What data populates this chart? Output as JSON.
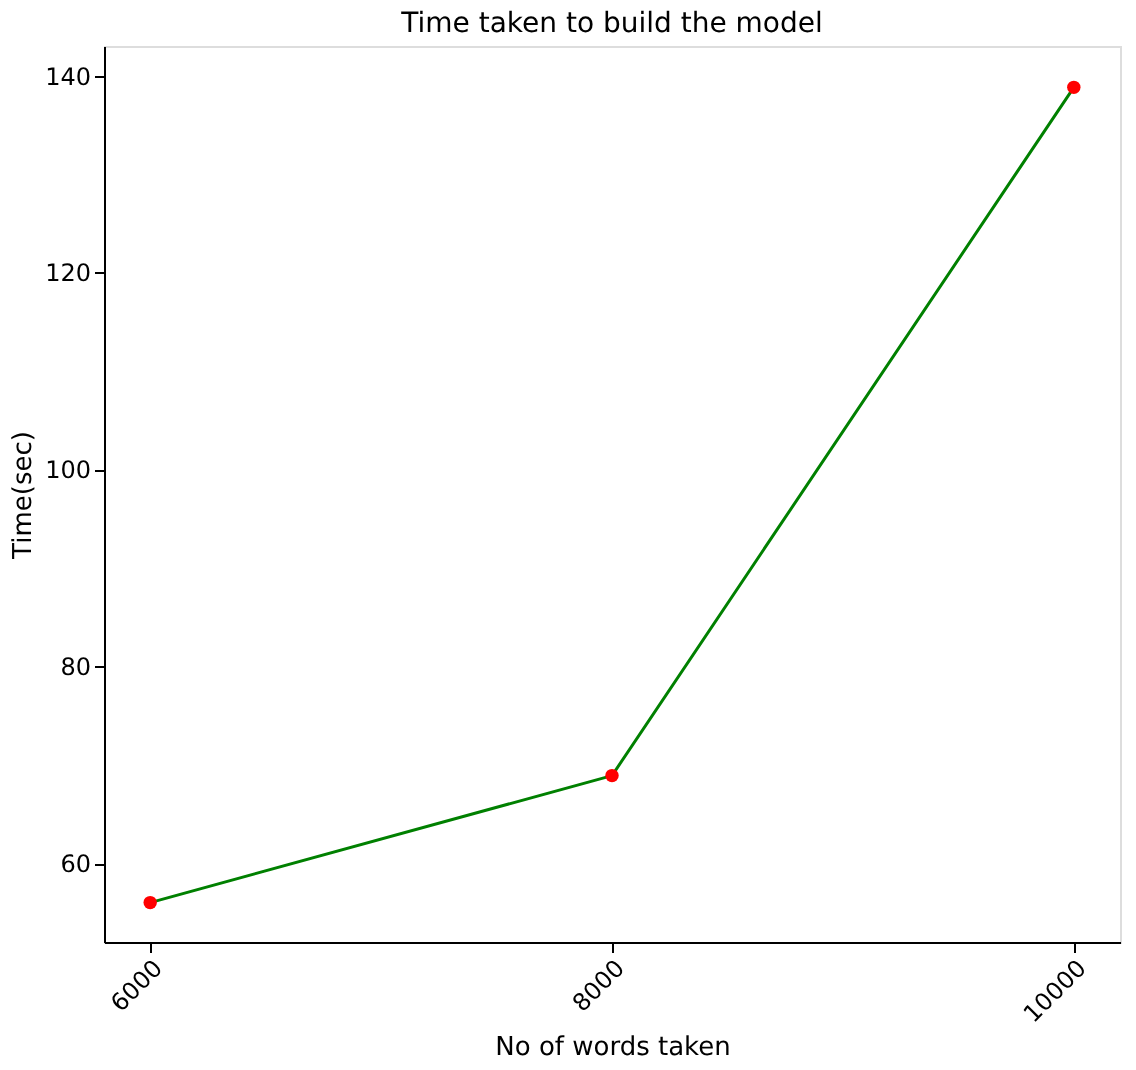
{
  "chart_data": {
    "type": "line",
    "title": "Time taken to build the model",
    "xlabel": "No of words taken",
    "ylabel": "Time(sec)",
    "x": [
      6000,
      8000,
      10000
    ],
    "series": [
      {
        "color": "#008000",
        "values": [
          56.0,
          68.9,
          138.8
        ],
        "marker": "none"
      },
      {
        "type": "scatter",
        "color": "#ff0000",
        "values": [
          56.0,
          68.9,
          138.8
        ],
        "marker": "circle"
      }
    ],
    "xlim": [
      5800,
      10200
    ],
    "xticks": [
      6000,
      8000,
      10000
    ],
    "ylim": [
      52,
      143
    ],
    "yticks": [
      60,
      80,
      100,
      120,
      140
    ],
    "grid": false
  }
}
